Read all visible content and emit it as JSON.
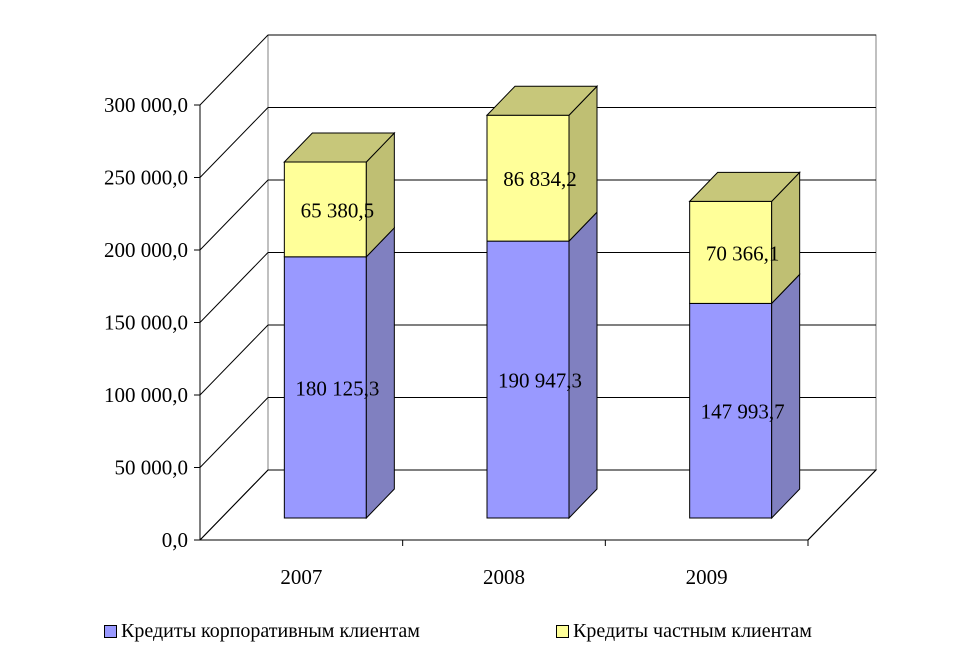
{
  "chart_data": {
    "type": "bar",
    "stacked": true,
    "three_d": true,
    "categories": [
      "2007",
      "2008",
      "2009"
    ],
    "series": [
      {
        "name": "Кредиты корпоративным клиентам",
        "values": [
          180125.3,
          190947.3,
          147993.7
        ],
        "labels": [
          "180 125,3",
          "190 947,3",
          "147 993,7"
        ],
        "color": "#9999ff",
        "side_color": "#8080c0",
        "top_color": "#9999ff"
      },
      {
        "name": "Кредиты частным клиентам",
        "values": [
          65380.5,
          86834.2,
          70366.1
        ],
        "labels": [
          "65 380,5",
          "86 834,2",
          "70 366,1"
        ],
        "color": "#ffff99",
        "side_color": "#bfbf73",
        "top_color": "#c7c77a"
      }
    ],
    "ylim": [
      0,
      300000
    ],
    "yticks": [
      0,
      50000,
      100000,
      150000,
      200000,
      250000,
      300000
    ],
    "ytick_labels": [
      "0,0",
      "50 000,0",
      "100 000,0",
      "150 000,0",
      "200 000,0",
      "250 000,0",
      "300 000,0"
    ],
    "grid": true,
    "legend_position": "bottom"
  }
}
